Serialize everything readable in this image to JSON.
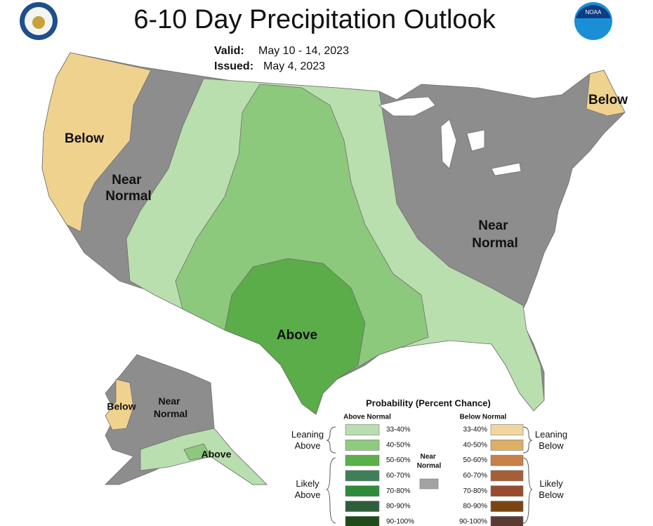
{
  "header": {
    "title": "6-10 Day Precipitation Outlook",
    "valid_label": "Valid:",
    "valid": "May 10 - 14, 2023",
    "issued_label": "Issued:",
    "issued": "May 4, 2023",
    "logo_text": "NOAA"
  },
  "map_labels": [
    {
      "lines": [
        "Below"
      ]
    },
    {
      "lines": [
        "Near",
        "Normal"
      ]
    },
    {
      "lines": [
        "Below"
      ]
    },
    {
      "lines": [
        "Near",
        "Normal"
      ]
    },
    {
      "lines": [
        "Above"
      ]
    },
    {
      "lines": [
        "Below"
      ]
    },
    {
      "lines": [
        "Near",
        "Normal"
      ]
    },
    {
      "lines": [
        "Above"
      ]
    }
  ],
  "legend": {
    "title": "Probability (Percent Chance)",
    "above_header": "Above Normal",
    "below_header": "Below Normal",
    "near": {
      "lines": [
        "Near",
        "Normal"
      ],
      "color": "#a3a3a3"
    },
    "above_items": [
      {
        "label": "33-40%",
        "color": "#b9dfb0"
      },
      {
        "label": "40-50%",
        "color": "#8fcb7e"
      },
      {
        "label": "50-60%",
        "color": "#5bb04a"
      },
      {
        "label": "60-70%",
        "color": "#3d7f59"
      },
      {
        "label": "70-80%",
        "color": "#2e8b3c"
      },
      {
        "label": "80-90%",
        "color": "#2f5e3b"
      },
      {
        "label": "90-100%",
        "color": "#1f4a1a"
      }
    ],
    "below_items": [
      {
        "label": "33-40%",
        "color": "#f3d69d"
      },
      {
        "label": "40-50%",
        "color": "#dcae66"
      },
      {
        "label": "50-60%",
        "color": "#c78149"
      },
      {
        "label": "60-70%",
        "color": "#a65e37"
      },
      {
        "label": "70-80%",
        "color": "#994b30"
      },
      {
        "label": "80-90%",
        "color": "#7a4513"
      },
      {
        "label": "90-100%",
        "color": "#5a3a33"
      }
    ],
    "groups": {
      "leaning_above": [
        "Leaning",
        "Above"
      ],
      "likely_above": [
        "Likely",
        "Above"
      ],
      "leaning_below": [
        "Leaning",
        "Below"
      ],
      "likely_below": [
        "Likely",
        "Below"
      ]
    }
  }
}
